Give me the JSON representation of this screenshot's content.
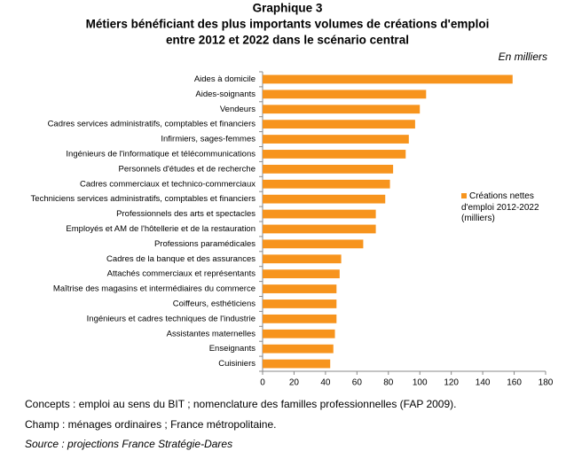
{
  "chart_data": {
    "type": "barh",
    "label": "Graphique 3",
    "title": [
      "Métiers bénéficiant des plus importants volumes de créations d'emploi",
      "entre 2012 et 2022 dans le scénario central"
    ],
    "unit_note": "En milliers",
    "categories": [
      "Aides à domicile",
      "Aides-soignants",
      "Vendeurs",
      "Cadres services administratifs, comptables et financiers",
      "Infirmiers, sages-femmes",
      "Ingénieurs de l'informatique et télécommunications",
      "Personnels d'études et de recherche",
      "Cadres commerciaux et technico-commerciaux",
      "Techniciens services administratifs, comptables et financiers",
      "Professionnels des arts et spectacles",
      "Employés et AM de l'hôtellerie et de la restauration",
      "Professions paramédicales",
      "Cadres de la banque et des assurances",
      "Attachés commerciaux et représentants",
      "Maîtrise des magasins et intermédiaires du commerce",
      "Coiffeurs, esthéticiens",
      "Ingénieurs et cadres techniques de l'industrie",
      "Assistantes maternelles",
      "Enseignants",
      "Cuisiniers"
    ],
    "series": [
      {
        "name": "Créations nettes d'emploi 2012-2022 (milliers)",
        "color": "#f7941d",
        "values": [
          159,
          104,
          100,
          97,
          93,
          91,
          83,
          81,
          78,
          72,
          72,
          64,
          50,
          49,
          47,
          47,
          47,
          46,
          45,
          43
        ]
      }
    ],
    "xlim": [
      0,
      180
    ],
    "xticks": [
      0,
      20,
      40,
      60,
      80,
      100,
      120,
      140,
      160,
      180
    ],
    "legend": "right",
    "notes": [
      "Concepts : emploi au sens du BIT ; nomenclature des familles professionnelles (FAP 2009).",
      "Champ : ménages ordinaires ; France métropolitaine.",
      "Source : projections France Stratégie-Dares"
    ]
  }
}
